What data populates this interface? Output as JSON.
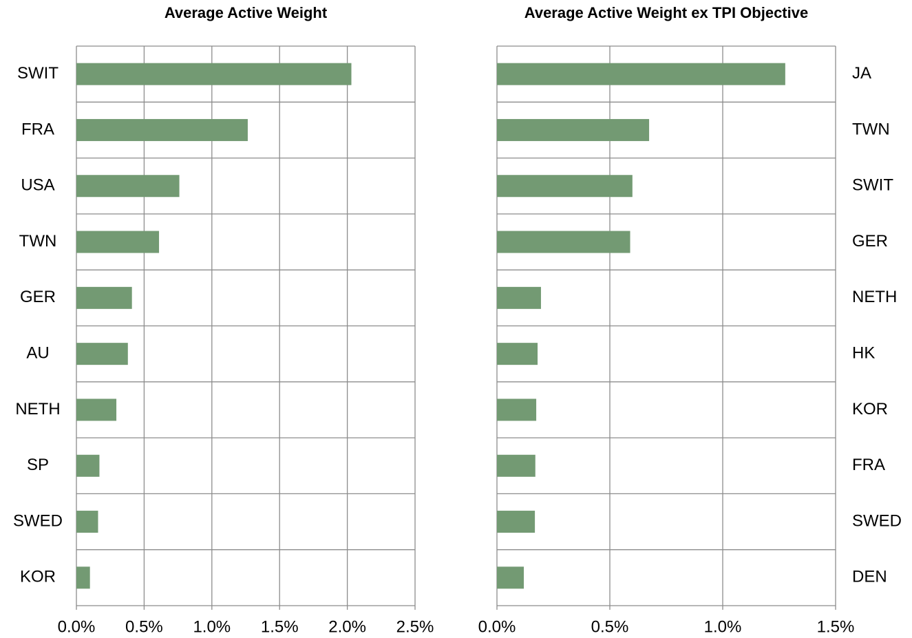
{
  "chart_data": [
    {
      "type": "barh",
      "title": "Average Active Weight",
      "label_side": "left",
      "color": "#739a73",
      "grid": true,
      "categories": [
        "SWIT",
        "FRA",
        "USA",
        "TWN",
        "GER",
        "AU",
        "NETH",
        "SP",
        "SWED",
        "KOR"
      ],
      "values": [
        2.03,
        1.265,
        0.76,
        0.61,
        0.41,
        0.38,
        0.295,
        0.17,
        0.16,
        0.1
      ],
      "xlim": [
        0,
        2.5
      ],
      "xticks": [
        {
          "value": 0,
          "label": "0.0%"
        },
        {
          "value": 0.5,
          "label": "0.5%"
        },
        {
          "value": 1,
          "label": "1.0%"
        },
        {
          "value": 1.5,
          "label": "1.5%"
        },
        {
          "value": 2,
          "label": "2.0%"
        },
        {
          "value": 2.5,
          "label": "2.5%"
        }
      ]
    },
    {
      "type": "barh",
      "title": "Average Active Weight ex TPI Objective",
      "label_side": "right",
      "color": "#739a73",
      "grid": true,
      "categories": [
        "JA",
        "TWN",
        "SWIT",
        "GER",
        "NETH",
        "HK",
        "KOR",
        "FRA",
        "SWED",
        "DEN"
      ],
      "values": [
        1.277,
        0.674,
        0.6,
        0.59,
        0.195,
        0.18,
        0.174,
        0.17,
        0.168,
        0.119
      ],
      "xlim": [
        0,
        1.5
      ],
      "xticks": [
        {
          "value": 0,
          "label": "0.0%"
        },
        {
          "value": 0.5,
          "label": "0.5%"
        },
        {
          "value": 1,
          "label": "1.0%"
        },
        {
          "value": 1.5,
          "label": "1.5%"
        }
      ]
    }
  ]
}
